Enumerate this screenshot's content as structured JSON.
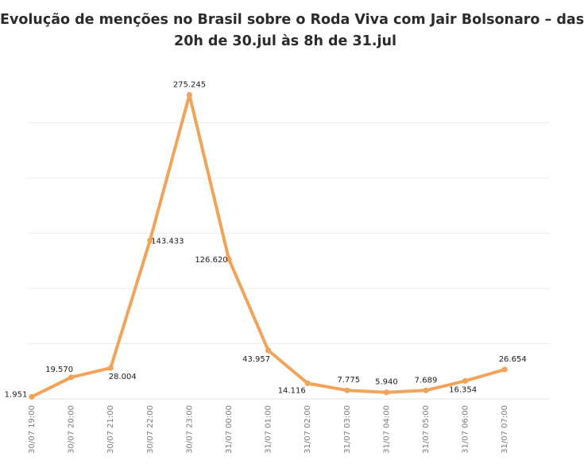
{
  "title_line1": "Evolução de menções no Brasil sobre o Roda Viva com Jair Bolsonaro – das",
  "title_line2": "20h de 30.jul às 8h de 31.jul",
  "chart_data": {
    "type": "line",
    "title": "Evolução de menções no Brasil sobre o Roda Viva com Jair Bolsonaro – das 20h de 30.jul às 8h de 31.jul",
    "xlabel": "",
    "ylabel": "",
    "categories": [
      "30/07 19:00",
      "30/07 20:00",
      "30/07 21:00",
      "30/07 22:00",
      "30/07 23:00",
      "31/07 00:00",
      "31/07 01:00",
      "31/07 02:00",
      "31/07 03:00",
      "31/07 04:00",
      "31/07 05:00",
      "31/07 06:00",
      "31/07 07:00"
    ],
    "values": [
      1951,
      19570,
      28004,
      143433,
      275245,
      126620,
      43957,
      14116,
      7775,
      5940,
      7689,
      16354,
      26654
    ],
    "data_labels": [
      "1.951",
      "19.570",
      "28.004",
      "143.433",
      "275.245",
      "126.620",
      "43.957",
      "14.116",
      "7.775",
      "5.940",
      "7.689",
      "16.354",
      "26.654"
    ],
    "ylim": [
      0,
      250000
    ],
    "grid": true,
    "legend": "none",
    "line_color": "#f2a35a"
  }
}
